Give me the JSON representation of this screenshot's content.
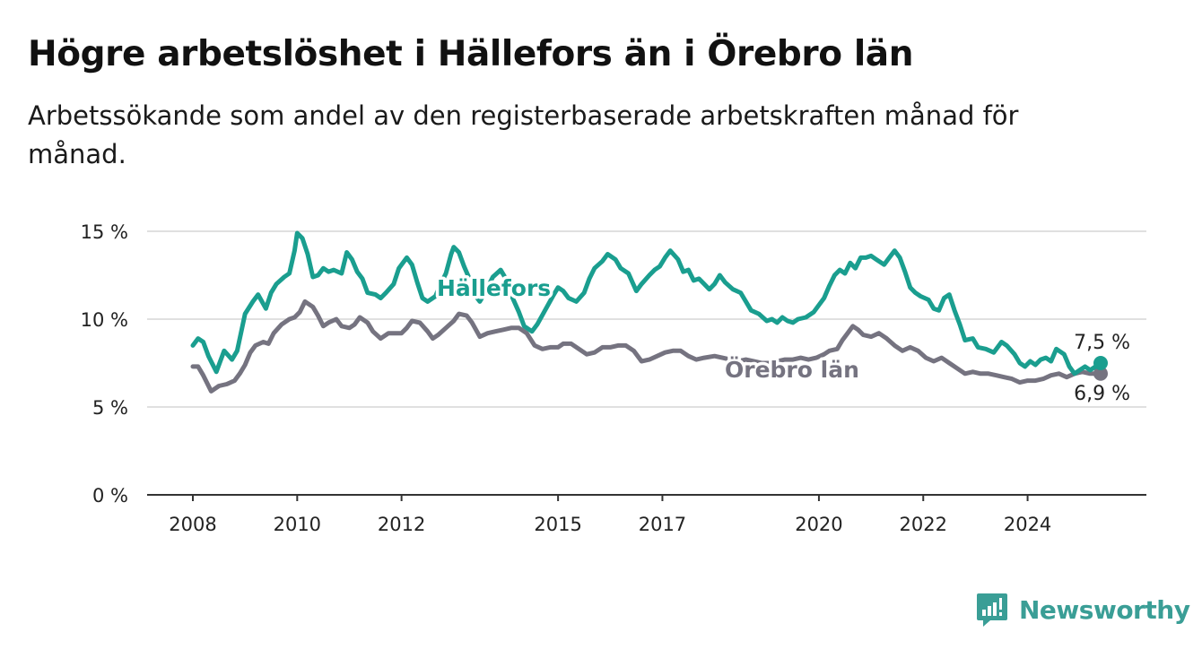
{
  "header": {
    "title": "Högre arbetslöshet i Hällefors än i Örebro län",
    "subtitle": "Arbetssökande som andel av den registerbaserade arbetskraften månad för månad."
  },
  "brand": {
    "name": "Newsworthy",
    "icon": "newsworthy-logo-icon",
    "color": "#3a9e96"
  },
  "chart_data": {
    "type": "line",
    "title": "Högre arbetslöshet i Hällefors än i Örebro län",
    "subtitle": "Arbetssökande som andel av den registerbaserade arbetskraften månad för månad.",
    "xlabel": "",
    "ylabel": "",
    "xlim": [
      2007.7,
      2025.6
    ],
    "ylim": [
      0,
      15
    ],
    "x_ticks": [
      2008,
      2010,
      2012,
      2015,
      2017,
      2020,
      2022,
      2024
    ],
    "x_tick_labels": [
      "2008",
      "2010",
      "2012",
      "2015",
      "2017",
      "2020",
      "2022",
      "2024"
    ],
    "y_ticks": [
      0,
      5,
      10,
      15
    ],
    "y_tick_labels": [
      "0 %",
      "5 %",
      "10 %",
      "15 %"
    ],
    "grid": "horizontal",
    "legend": "inline labels",
    "series": [
      {
        "name": "Hällefors",
        "color": "#1a9e8f",
        "end_label": "7,5 %",
        "points": [
          [
            2008.0,
            8.5
          ],
          [
            2008.1,
            8.9
          ],
          [
            2008.2,
            8.7
          ],
          [
            2008.3,
            7.9
          ],
          [
            2008.45,
            7.0
          ],
          [
            2008.6,
            8.2
          ],
          [
            2008.75,
            7.7
          ],
          [
            2008.85,
            8.2
          ],
          [
            2009.0,
            10.3
          ],
          [
            2009.15,
            11.0
          ],
          [
            2009.25,
            11.4
          ],
          [
            2009.4,
            10.6
          ],
          [
            2009.5,
            11.5
          ],
          [
            2009.6,
            12.0
          ],
          [
            2009.75,
            12.4
          ],
          [
            2009.85,
            12.6
          ],
          [
            2009.95,
            13.9
          ],
          [
            2010.0,
            14.9
          ],
          [
            2010.1,
            14.6
          ],
          [
            2010.2,
            13.7
          ],
          [
            2010.3,
            12.4
          ],
          [
            2010.4,
            12.5
          ],
          [
            2010.5,
            12.9
          ],
          [
            2010.6,
            12.7
          ],
          [
            2010.7,
            12.8
          ],
          [
            2010.85,
            12.6
          ],
          [
            2010.95,
            13.8
          ],
          [
            2011.05,
            13.4
          ],
          [
            2011.15,
            12.7
          ],
          [
            2011.25,
            12.3
          ],
          [
            2011.35,
            11.5
          ],
          [
            2011.5,
            11.4
          ],
          [
            2011.6,
            11.2
          ],
          [
            2011.7,
            11.5
          ],
          [
            2011.85,
            12.0
          ],
          [
            2011.95,
            12.9
          ],
          [
            2012.1,
            13.5
          ],
          [
            2012.2,
            13.1
          ],
          [
            2012.3,
            12.1
          ],
          [
            2012.4,
            11.2
          ],
          [
            2012.5,
            11.0
          ],
          [
            2012.65,
            11.3
          ],
          [
            2012.75,
            12.0
          ],
          [
            2012.85,
            12.6
          ],
          [
            2012.95,
            13.7
          ],
          [
            2013.0,
            14.1
          ],
          [
            2013.1,
            13.8
          ],
          [
            2013.2,
            13.0
          ],
          [
            2013.3,
            12.3
          ],
          [
            2013.4,
            11.4
          ],
          [
            2013.5,
            11.0
          ],
          [
            2013.6,
            11.5
          ],
          [
            2013.75,
            12.4
          ],
          [
            2013.9,
            12.8
          ],
          [
            2014.0,
            12.3
          ],
          [
            2014.1,
            11.4
          ],
          [
            2014.25,
            10.4
          ],
          [
            2014.35,
            9.6
          ],
          [
            2014.5,
            9.3
          ],
          [
            2014.6,
            9.7
          ],
          [
            2014.75,
            10.5
          ],
          [
            2014.9,
            11.3
          ],
          [
            2015.0,
            11.8
          ],
          [
            2015.1,
            11.6
          ],
          [
            2015.2,
            11.2
          ],
          [
            2015.35,
            11.0
          ],
          [
            2015.5,
            11.5
          ],
          [
            2015.6,
            12.3
          ],
          [
            2015.7,
            12.9
          ],
          [
            2015.85,
            13.3
          ],
          [
            2015.95,
            13.7
          ],
          [
            2016.1,
            13.4
          ],
          [
            2016.2,
            12.9
          ],
          [
            2016.35,
            12.6
          ],
          [
            2016.5,
            11.6
          ],
          [
            2016.6,
            12.0
          ],
          [
            2016.75,
            12.5
          ],
          [
            2016.85,
            12.8
          ],
          [
            2016.95,
            13.0
          ],
          [
            2017.05,
            13.5
          ],
          [
            2017.15,
            13.9
          ],
          [
            2017.3,
            13.4
          ],
          [
            2017.4,
            12.7
          ],
          [
            2017.5,
            12.8
          ],
          [
            2017.6,
            12.2
          ],
          [
            2017.7,
            12.3
          ],
          [
            2017.8,
            12.0
          ],
          [
            2017.9,
            11.7
          ],
          [
            2018.0,
            12.0
          ],
          [
            2018.1,
            12.5
          ],
          [
            2018.2,
            12.1
          ],
          [
            2018.35,
            11.7
          ],
          [
            2018.5,
            11.5
          ],
          [
            2018.6,
            11.0
          ],
          [
            2018.7,
            10.5
          ],
          [
            2018.85,
            10.3
          ],
          [
            2019.0,
            9.9
          ],
          [
            2019.1,
            10.0
          ],
          [
            2019.2,
            9.8
          ],
          [
            2019.3,
            10.1
          ],
          [
            2019.4,
            9.9
          ],
          [
            2019.5,
            9.8
          ],
          [
            2019.6,
            10.0
          ],
          [
            2019.75,
            10.1
          ],
          [
            2019.9,
            10.4
          ],
          [
            2020.0,
            10.8
          ],
          [
            2020.1,
            11.2
          ],
          [
            2020.2,
            11.9
          ],
          [
            2020.3,
            12.5
          ],
          [
            2020.4,
            12.8
          ],
          [
            2020.5,
            12.6
          ],
          [
            2020.6,
            13.2
          ],
          [
            2020.7,
            12.9
          ],
          [
            2020.8,
            13.5
          ],
          [
            2020.9,
            13.5
          ],
          [
            2021.0,
            13.6
          ],
          [
            2021.1,
            13.4
          ],
          [
            2021.25,
            13.1
          ],
          [
            2021.35,
            13.5
          ],
          [
            2021.45,
            13.9
          ],
          [
            2021.55,
            13.5
          ],
          [
            2021.65,
            12.7
          ],
          [
            2021.75,
            11.8
          ],
          [
            2021.85,
            11.5
          ],
          [
            2021.95,
            11.3
          ],
          [
            2022.1,
            11.1
          ],
          [
            2022.2,
            10.6
          ],
          [
            2022.3,
            10.5
          ],
          [
            2022.4,
            11.2
          ],
          [
            2022.5,
            11.4
          ],
          [
            2022.6,
            10.5
          ],
          [
            2022.7,
            9.7
          ],
          [
            2022.8,
            8.8
          ],
          [
            2022.95,
            8.9
          ],
          [
            2023.05,
            8.4
          ],
          [
            2023.2,
            8.3
          ],
          [
            2023.35,
            8.1
          ],
          [
            2023.5,
            8.7
          ],
          [
            2023.6,
            8.5
          ],
          [
            2023.75,
            8.0
          ],
          [
            2023.85,
            7.5
          ],
          [
            2023.95,
            7.3
          ],
          [
            2024.05,
            7.6
          ],
          [
            2024.15,
            7.4
          ],
          [
            2024.25,
            7.7
          ],
          [
            2024.35,
            7.8
          ],
          [
            2024.45,
            7.6
          ],
          [
            2024.55,
            8.3
          ],
          [
            2024.7,
            8.0
          ],
          [
            2024.8,
            7.3
          ],
          [
            2024.9,
            6.9
          ],
          [
            2025.0,
            7.1
          ],
          [
            2025.1,
            7.3
          ],
          [
            2025.2,
            7.1
          ],
          [
            2025.3,
            7.3
          ],
          [
            2025.4,
            7.5
          ]
        ]
      },
      {
        "name": "Örebro län",
        "color": "#757380",
        "end_label": "6,9 %",
        "points": [
          [
            2008.0,
            7.3
          ],
          [
            2008.1,
            7.3
          ],
          [
            2008.2,
            6.8
          ],
          [
            2008.35,
            5.9
          ],
          [
            2008.5,
            6.2
          ],
          [
            2008.65,
            6.3
          ],
          [
            2008.8,
            6.5
          ],
          [
            2008.9,
            6.9
          ],
          [
            2009.0,
            7.4
          ],
          [
            2009.1,
            8.1
          ],
          [
            2009.2,
            8.5
          ],
          [
            2009.35,
            8.7
          ],
          [
            2009.45,
            8.6
          ],
          [
            2009.55,
            9.2
          ],
          [
            2009.7,
            9.7
          ],
          [
            2009.85,
            10.0
          ],
          [
            2009.95,
            10.1
          ],
          [
            2010.05,
            10.4
          ],
          [
            2010.15,
            11.0
          ],
          [
            2010.3,
            10.7
          ],
          [
            2010.4,
            10.2
          ],
          [
            2010.5,
            9.6
          ],
          [
            2010.6,
            9.8
          ],
          [
            2010.75,
            10.0
          ],
          [
            2010.85,
            9.6
          ],
          [
            2011.0,
            9.5
          ],
          [
            2011.1,
            9.7
          ],
          [
            2011.2,
            10.1
          ],
          [
            2011.35,
            9.8
          ],
          [
            2011.45,
            9.3
          ],
          [
            2011.6,
            8.9
          ],
          [
            2011.75,
            9.2
          ],
          [
            2011.9,
            9.2
          ],
          [
            2012.0,
            9.2
          ],
          [
            2012.1,
            9.5
          ],
          [
            2012.2,
            9.9
          ],
          [
            2012.35,
            9.8
          ],
          [
            2012.5,
            9.3
          ],
          [
            2012.6,
            8.9
          ],
          [
            2012.7,
            9.1
          ],
          [
            2012.85,
            9.5
          ],
          [
            2013.0,
            9.9
          ],
          [
            2013.1,
            10.3
          ],
          [
            2013.25,
            10.2
          ],
          [
            2013.35,
            9.8
          ],
          [
            2013.5,
            9.0
          ],
          [
            2013.65,
            9.2
          ],
          [
            2013.8,
            9.3
          ],
          [
            2013.95,
            9.4
          ],
          [
            2014.1,
            9.5
          ],
          [
            2014.25,
            9.5
          ],
          [
            2014.4,
            9.2
          ],
          [
            2014.55,
            8.5
          ],
          [
            2014.7,
            8.3
          ],
          [
            2014.85,
            8.4
          ],
          [
            2015.0,
            8.4
          ],
          [
            2015.1,
            8.6
          ],
          [
            2015.25,
            8.6
          ],
          [
            2015.4,
            8.3
          ],
          [
            2015.55,
            8.0
          ],
          [
            2015.7,
            8.1
          ],
          [
            2015.85,
            8.4
          ],
          [
            2016.0,
            8.4
          ],
          [
            2016.15,
            8.5
          ],
          [
            2016.3,
            8.5
          ],
          [
            2016.45,
            8.2
          ],
          [
            2016.6,
            7.6
          ],
          [
            2016.75,
            7.7
          ],
          [
            2016.9,
            7.9
          ],
          [
            2017.05,
            8.1
          ],
          [
            2017.2,
            8.2
          ],
          [
            2017.35,
            8.2
          ],
          [
            2017.5,
            7.9
          ],
          [
            2017.65,
            7.7
          ],
          [
            2017.8,
            7.8
          ],
          [
            2018.0,
            7.9
          ],
          [
            2018.15,
            7.8
          ],
          [
            2018.3,
            7.7
          ],
          [
            2018.45,
            7.6
          ],
          [
            2018.6,
            7.7
          ],
          [
            2018.75,
            7.6
          ],
          [
            2018.9,
            7.5
          ],
          [
            2019.05,
            7.5
          ],
          [
            2019.2,
            7.6
          ],
          [
            2019.35,
            7.7
          ],
          [
            2019.5,
            7.7
          ],
          [
            2019.65,
            7.8
          ],
          [
            2019.8,
            7.7
          ],
          [
            2019.95,
            7.8
          ],
          [
            2020.1,
            8.0
          ],
          [
            2020.2,
            8.2
          ],
          [
            2020.35,
            8.3
          ],
          [
            2020.45,
            8.8
          ],
          [
            2020.55,
            9.2
          ],
          [
            2020.65,
            9.6
          ],
          [
            2020.75,
            9.4
          ],
          [
            2020.85,
            9.1
          ],
          [
            2021.0,
            9.0
          ],
          [
            2021.15,
            9.2
          ],
          [
            2021.3,
            8.9
          ],
          [
            2021.45,
            8.5
          ],
          [
            2021.6,
            8.2
          ],
          [
            2021.75,
            8.4
          ],
          [
            2021.9,
            8.2
          ],
          [
            2022.05,
            7.8
          ],
          [
            2022.2,
            7.6
          ],
          [
            2022.35,
            7.8
          ],
          [
            2022.5,
            7.5
          ],
          [
            2022.65,
            7.2
          ],
          [
            2022.8,
            6.9
          ],
          [
            2022.95,
            7.0
          ],
          [
            2023.1,
            6.9
          ],
          [
            2023.25,
            6.9
          ],
          [
            2023.4,
            6.8
          ],
          [
            2023.55,
            6.7
          ],
          [
            2023.7,
            6.6
          ],
          [
            2023.85,
            6.4
          ],
          [
            2024.0,
            6.5
          ],
          [
            2024.15,
            6.5
          ],
          [
            2024.3,
            6.6
          ],
          [
            2024.45,
            6.8
          ],
          [
            2024.6,
            6.9
          ],
          [
            2024.75,
            6.7
          ],
          [
            2024.9,
            6.9
          ],
          [
            2025.05,
            7.0
          ],
          [
            2025.2,
            6.9
          ],
          [
            2025.3,
            6.9
          ],
          [
            2025.4,
            6.9
          ]
        ]
      }
    ]
  }
}
